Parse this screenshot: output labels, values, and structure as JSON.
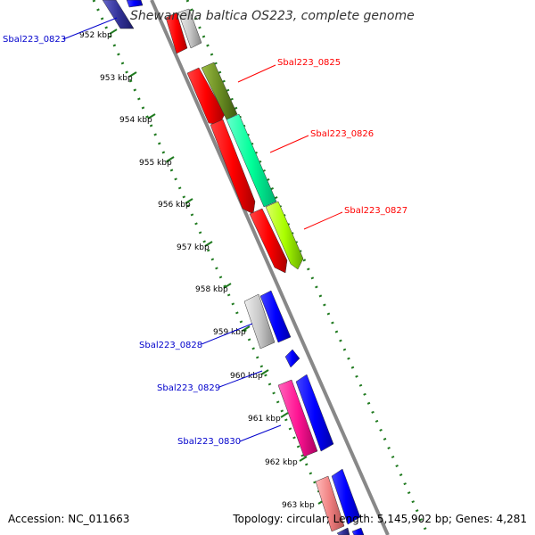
{
  "title": "Shewanella baltica OS223, complete genome",
  "footer": {
    "accession": "Accession: NC_011663",
    "summary": "Topology: circular; Length: 5,145,902 bp; Genes: 4,281"
  },
  "ticks": [
    "952 kbp",
    "953 kbp",
    "954 kbp",
    "955 kbp",
    "956 kbp",
    "957 kbp",
    "958 kbp",
    "959 kbp",
    "960 kbp",
    "961 kbp",
    "962 kbp",
    "963 kbp"
  ],
  "labels_forward": [
    {
      "id": "sbal223-0825",
      "text": "Sbal223_0825",
      "color": "#ff0000"
    },
    {
      "id": "sbal223-0826",
      "text": "Sbal223_0826",
      "color": "#ff0000"
    },
    {
      "id": "sbal223-0827",
      "text": "Sbal223_0827",
      "color": "#ff0000"
    }
  ],
  "labels_reverse": [
    {
      "id": "sbal223-0823",
      "text": "Sbal223_0823",
      "color": "#0000cc"
    },
    {
      "id": "sbal223-0828",
      "text": "Sbal223_0828",
      "color": "#0000cc"
    },
    {
      "id": "sbal223-0829",
      "text": "Sbal223_0829",
      "color": "#0000cc"
    },
    {
      "id": "sbal223-0830",
      "text": "Sbal223_0830",
      "color": "#0000cc"
    }
  ],
  "colors": {
    "backbone": "#888888",
    "gc_ticks": "#1f7a1f",
    "cds_red": "#ff0000",
    "cds_blue": "#0000ff",
    "cds_navy": "#333399",
    "cds_grey": "#c8c8c8",
    "cds_olive": "#6b8e23",
    "cds_aqua": "#00ff99",
    "cds_lime": "#aaff00",
    "cds_pink": "#ff1493",
    "cds_salmon": "#f08080"
  }
}
